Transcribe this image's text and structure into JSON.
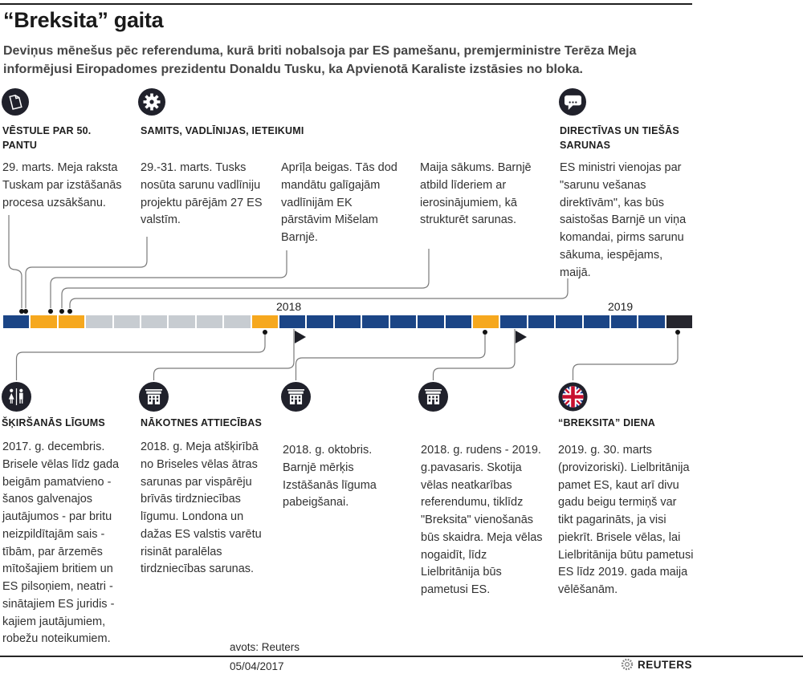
{
  "header": {
    "title": "“Breksita” gaita",
    "intro": "Deviņus mēnešus pēc referenduma, kurā briti nobalsoja par ES pamešanu, premjerministre Terēza Meja informējusi Eiropadomes prezidentu Donaldu Tusku, ka Apvienotā Karaliste izstāsies no bloka."
  },
  "top_sections": [
    {
      "icon": "letter-icon",
      "heading": "VĒSTULE PAR 50. PANTU"
    },
    {
      "icon": "gear-icon",
      "heading": "SAMITS, VADLĪNIJAS, IETEIKUMI"
    },
    {
      "icon": "speech-bubble-icon",
      "heading": "DIRECTĪVAS UN TIEŠĀS SARUNAS"
    }
  ],
  "top_events": [
    {
      "text": "29. marts. Meja raksta Tuskam par izstāšanās procesa uzsākšanu."
    },
    {
      "text": "29.-31. marts. Tusks nosūta sarunu vadlīniju projektu pārējām 27 ES valstīm."
    },
    {
      "text": "Aprīļa beigas. Tās dod mandātu galīgajām vadlīnijām EK pārstāvim Mišelam Barnjē."
    },
    {
      "text": "Maija sākums.  Barnjē atbild līderiem ar ierosinājumiem, kā strukturēt sarunas."
    },
    {
      "text": "ES ministri vienojas par \"sarunu vešanas direktīvām\", kas būs saistošas Barnjē un viņa komandai, pirms sarunu sākuma, iespējams, maijā."
    }
  ],
  "timeline": {
    "year_labels": [
      "2018",
      "2019"
    ],
    "colors": {
      "blue": "#1b4586",
      "yellow": "#f6a81e",
      "gray": "#c7ccd1",
      "black": "#26262e"
    },
    "segments": [
      "blue",
      "yellow",
      "yellow",
      "gray",
      "gray",
      "gray",
      "gray",
      "gray",
      "gray",
      "yellow",
      "blue",
      "blue",
      "blue",
      "blue",
      "blue",
      "blue",
      "blue",
      "yellow",
      "blue",
      "blue",
      "blue",
      "blue",
      "blue",
      "blue",
      "black"
    ]
  },
  "bottom_events": [
    {
      "icon": "separation-icon",
      "heading": "ŠĶIRŠANĀS LĪGUMS",
      "text": "2017. g. decembris. Brisele vēlas līdz gada beigām pamatvieno - šanos galvenajos jautājumos - par britu neizpildītajām sais - tībām, par ārzemēs mītošajiem britiem un ES pilsoņiem, neatri - sinātajiem ES juridis - kajiem jautājumiem, robežu noteikumiem."
    },
    {
      "icon": "building-icon",
      "heading": "NĀKOTNES ATTIECĪBAS",
      "text": "2018. g. Meja atšķirībā no Briseles vēlas ātras sarunas par vispārēju brīvās tirdzniecības līgumu. Londona un dažas ES valstis varētu risināt paralēlas tirdzniecības sarunas."
    },
    {
      "icon": "building-icon",
      "heading": "",
      "text": "2018. g. oktobris. Barnjē mērķis Izstāšanās līguma pabeigšanai."
    },
    {
      "icon": "building-icon",
      "heading": "",
      "text": "2018. g. rudens - 2019. g.pavasaris. Skotija vēlas neatkarības referendumu, tiklīdz \"Breksita\" vienošanās būs skaidra. Meja vēlas nogaidīt, līdz Lielbritānija būs pametusi ES."
    },
    {
      "icon": "uk-flag-icon",
      "heading": "“BREKSITA” DIENA",
      "text": "2019. g. 30. marts (provizoriski). Lielbritānija pamet ES, kaut arī divu gadu beigu termiņš var tikt pagarināts, ja visi piekrīt. Brisele vēlas, lai Lielbritānija būtu pametusi ES līdz 2019. gada maija vēlēšanām."
    }
  ],
  "footer": {
    "source": "avots: Reuters",
    "date": "05/04/2017",
    "brand": "REUTERS"
  }
}
